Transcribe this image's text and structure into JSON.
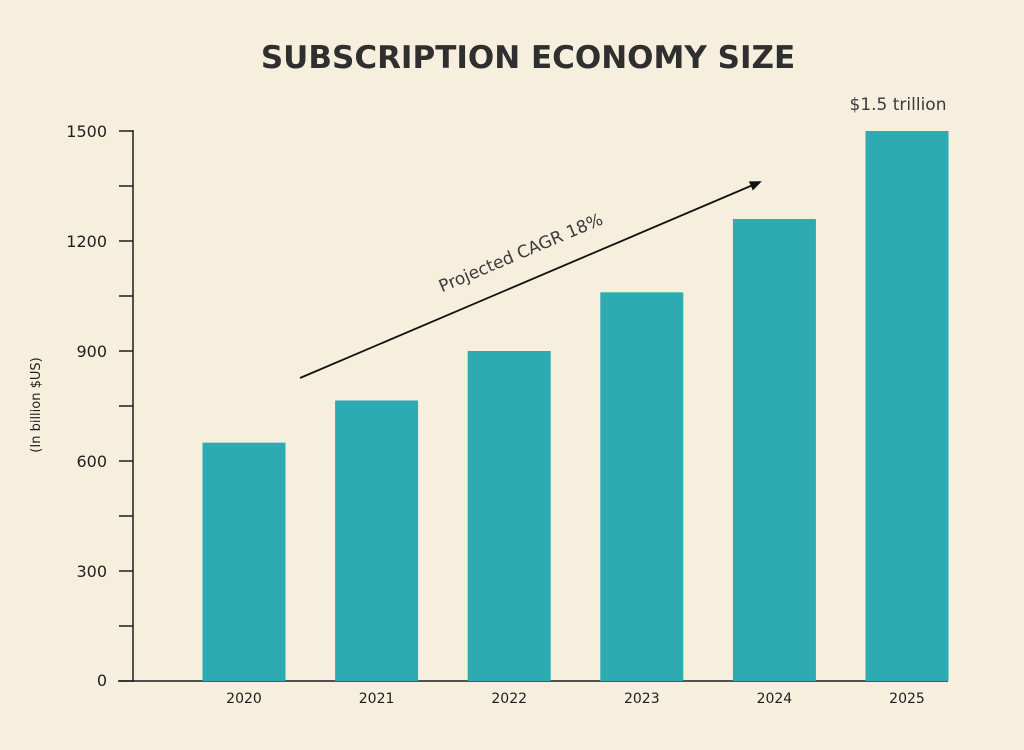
{
  "chart_data": {
    "type": "bar",
    "title": "SUBSCRIPTION ECONOMY SIZE",
    "xlabel": "",
    "ylabel": "(In billion $US)",
    "categories": [
      "2020",
      "2021",
      "2022",
      "2023",
      "2024",
      "2025"
    ],
    "values": [
      650,
      765,
      900,
      1060,
      1260,
      1500
    ],
    "ylim": [
      0,
      1500
    ],
    "yticks": [
      0,
      300,
      600,
      900,
      1200,
      1500
    ],
    "ytick_labels": [
      "0",
      "300",
      "600",
      "900",
      "1200",
      "1500"
    ],
    "minor_yticks": [
      150,
      450,
      750,
      1050,
      1350
    ],
    "bar_color": "#2eaab3",
    "axis_color": "#1e1e1e",
    "background": "#f6efde",
    "grid": false,
    "legend": "none",
    "annotations": {
      "trend": "Projected CAGR 18%",
      "last_bar": "$1.5 trillion"
    }
  }
}
